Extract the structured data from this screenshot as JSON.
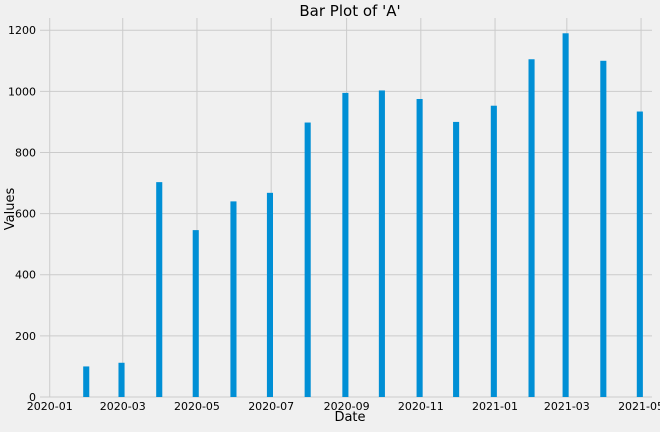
{
  "chart_data": {
    "type": "bar",
    "title": "Bar Plot of 'A'",
    "xlabel": "Date",
    "ylabel": "Values",
    "x_axis_type": "date",
    "xlim": [
      "2019-12-24",
      "2021-05-10"
    ],
    "ylim": [
      0,
      1240
    ],
    "grid": true,
    "bar_color": "#008fd5",
    "background_color": "#f0f0f0",
    "grid_color": "#cbcbcb",
    "x_ticks": [
      {
        "value": "2020-01-01",
        "label": "2020-01"
      },
      {
        "value": "2020-03-01",
        "label": "2020-03"
      },
      {
        "value": "2020-05-01",
        "label": "2020-05"
      },
      {
        "value": "2020-07-01",
        "label": "2020-07"
      },
      {
        "value": "2020-09-01",
        "label": "2020-09"
      },
      {
        "value": "2020-11-01",
        "label": "2020-11"
      },
      {
        "value": "2021-01-01",
        "label": "2021-01"
      },
      {
        "value": "2021-03-01",
        "label": "2021-03"
      },
      {
        "value": "2021-05-01",
        "label": "2021-05"
      }
    ],
    "y_ticks": [
      0,
      200,
      400,
      600,
      800,
      1000,
      1200
    ],
    "x": [
      "2020-01-31",
      "2020-02-29",
      "2020-03-31",
      "2020-04-30",
      "2020-05-31",
      "2020-06-30",
      "2020-07-31",
      "2020-08-31",
      "2020-09-30",
      "2020-10-31",
      "2020-11-30",
      "2020-12-31",
      "2021-01-31",
      "2021-02-28",
      "2021-03-31",
      "2021-04-30"
    ],
    "values": [
      100,
      112,
      703,
      546,
      640,
      668,
      898,
      995,
      1003,
      975,
      900,
      953,
      1105,
      1190,
      1100,
      934
    ]
  }
}
